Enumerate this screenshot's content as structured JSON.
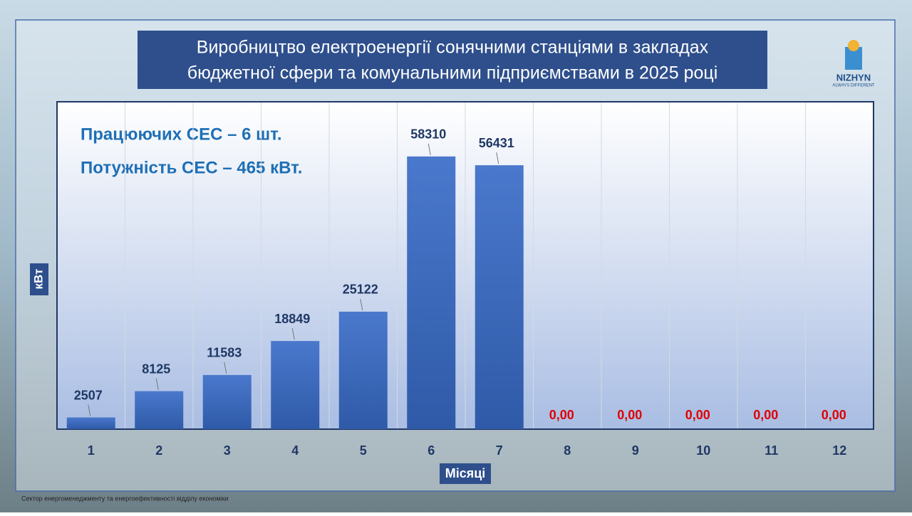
{
  "chart_data": {
    "type": "bar",
    "title": [
      "Виробництво електроенергії  сонячними  станціями в закладах",
      "бюджетної сфери та комунальними підприємствами в 2025 році"
    ],
    "annotations": [
      "Працюючих СЕС – 6 шт.",
      "Потужність СЕС – 465 кВт."
    ],
    "y_label": "кВт",
    "x_label": "Місяці",
    "categories": [
      "1",
      "2",
      "3",
      "4",
      "5",
      "6",
      "7",
      "8",
      "9",
      "10",
      "11",
      "12"
    ],
    "values": [
      2507,
      8125,
      11583,
      18849,
      25122,
      58310,
      56431,
      0,
      0,
      0,
      0,
      0
    ],
    "value_labels": [
      "2507",
      "8125",
      "11583",
      "18849",
      "25122",
      "58310",
      "56431",
      "0,00",
      "0,00",
      "0,00",
      "0,00",
      "0,00"
    ],
    "color": "#4472c4",
    "zero_label_color": "#e00000",
    "ylim": [
      0,
      70000
    ]
  },
  "logo": {
    "name": "NIZHYN",
    "slogan": "ALWAYS DIFFERENT"
  },
  "footer": "Сектор енергоменеджменту та енергоефективності відділу економіки"
}
